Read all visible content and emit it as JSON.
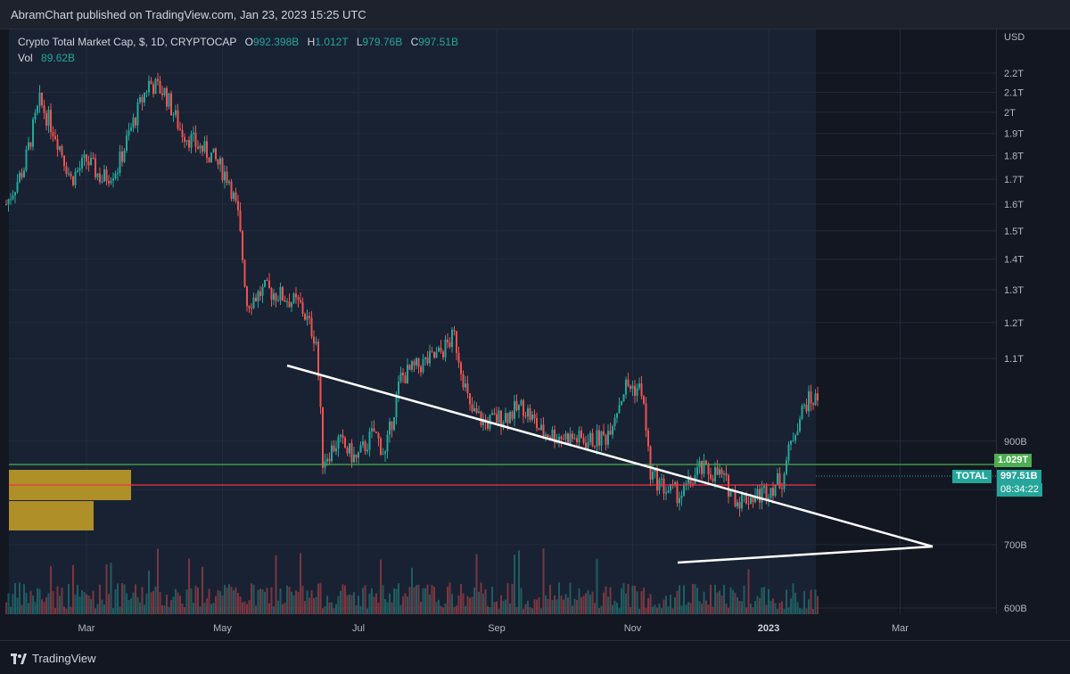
{
  "header": {
    "text": "AbramChart published on TradingView.com, Jan 23, 2023 15:25 UTC"
  },
  "legend": {
    "symbol": "Crypto Total Market Cap, $, 1D, CRYPTOCAP",
    "open_label": "O",
    "open": "992.398B",
    "high_label": "H",
    "high": "1.012T",
    "low_label": "L",
    "low": "979.76B",
    "close_label": "C",
    "close": "997.51B",
    "vol_label": "Vol",
    "vol": "89.62B"
  },
  "axis": {
    "currency": "USD",
    "y_ticks": [
      "2.2T",
      "2.1T",
      "2T",
      "1.9T",
      "1.8T",
      "1.7T",
      "1.6T",
      "1.5T",
      "1.4T",
      "1.3T",
      "1.2T",
      "1.1T",
      "900B",
      "800B",
      "700B",
      "600B"
    ],
    "x_ticks": [
      "Mar",
      "May",
      "Jul",
      "Sep",
      "Nov",
      "2023",
      "Mar"
    ]
  },
  "badges": {
    "green_level": "1.029T",
    "symbol_tag": "TOTAL",
    "last_price": "997.51B",
    "countdown": "08:34:22"
  },
  "footer": {
    "brand": "TradingView"
  },
  "colors": {
    "up": "#26a69a",
    "down": "#ef5350",
    "green_line": "#4caf50",
    "red_line": "#f23645",
    "zone": "#c9a227"
  },
  "chart_data": {
    "type": "candlestick",
    "title": "Crypto Total Market Cap, $, 1D, CRYPTOCAP",
    "ylabel": "USD",
    "ylim": [
      590,
      2280
    ],
    "unit": "B",
    "price_path": [
      [
        "2022-01-24",
        1600
      ],
      [
        "2022-02-01",
        1750
      ],
      [
        "2022-02-08",
        2050
      ],
      [
        "2022-02-15",
        1900
      ],
      [
        "2022-02-22",
        1700
      ],
      [
        "2022-03-01",
        1780
      ],
      [
        "2022-03-08",
        1700
      ],
      [
        "2022-03-15",
        1750
      ],
      [
        "2022-03-22",
        1950
      ],
      [
        "2022-03-29",
        2150
      ],
      [
        "2022-04-05",
        2100
      ],
      [
        "2022-04-12",
        1920
      ],
      [
        "2022-04-19",
        1850
      ],
      [
        "2022-04-26",
        1800
      ],
      [
        "2022-05-04",
        1700
      ],
      [
        "2022-05-08",
        1550
      ],
      [
        "2022-05-12",
        1260
      ],
      [
        "2022-05-20",
        1300
      ],
      [
        "2022-05-28",
        1280
      ],
      [
        "2022-06-05",
        1250
      ],
      [
        "2022-06-12",
        1150
      ],
      [
        "2022-06-15",
        860
      ],
      [
        "2022-06-22",
        900
      ],
      [
        "2022-06-30",
        860
      ],
      [
        "2022-07-08",
        920
      ],
      [
        "2022-07-13",
        870
      ],
      [
        "2022-07-20",
        1050
      ],
      [
        "2022-07-28",
        1080
      ],
      [
        "2022-08-06",
        1110
      ],
      [
        "2022-08-13",
        1160
      ],
      [
        "2022-08-20",
        970
      ],
      [
        "2022-08-27",
        940
      ],
      [
        "2022-09-06",
        960
      ],
      [
        "2022-09-13",
        980
      ],
      [
        "2022-09-21",
        920
      ],
      [
        "2022-10-01",
        910
      ],
      [
        "2022-10-12",
        900
      ],
      [
        "2022-10-20",
        910
      ],
      [
        "2022-10-29",
        1030
      ],
      [
        "2022-11-05",
        1020
      ],
      [
        "2022-11-09",
        830
      ],
      [
        "2022-11-16",
        800
      ],
      [
        "2022-11-23",
        790
      ],
      [
        "2022-12-01",
        840
      ],
      [
        "2022-12-10",
        830
      ],
      [
        "2022-12-18",
        780
      ],
      [
        "2022-12-28",
        790
      ],
      [
        "2023-01-07",
        820
      ],
      [
        "2023-01-13",
        930
      ],
      [
        "2023-01-18",
        990
      ],
      [
        "2023-01-23",
        997.51
      ]
    ],
    "overlays": {
      "green_level": 1029,
      "red_level": 970,
      "white_upper_line": [
        [
          "2022-06-03",
          1330
        ],
        [
          "2023-03-20",
          785
        ]
      ],
      "white_lower_line": [
        [
          "2022-11-19",
          740
        ],
        [
          "2023-03-20",
          785
        ]
      ]
    }
  }
}
